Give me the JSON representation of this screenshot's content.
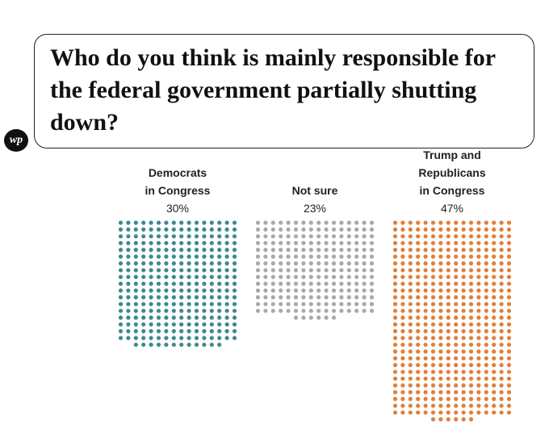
{
  "chart_data": {
    "type": "dot",
    "title": "Who do you think is mainly responsible for the federal government partially shutting down?",
    "categories": [
      "Democrats\nin Congress",
      "Not sure",
      "Trump and\nRepublicans\nin Congress"
    ],
    "values": [
      30,
      23,
      47
    ],
    "value_labels": [
      "30%",
      "23%",
      "47%"
    ],
    "colors": [
      "#3d8a8c",
      "#a9a9a9",
      "#e07f3c"
    ]
  }
}
